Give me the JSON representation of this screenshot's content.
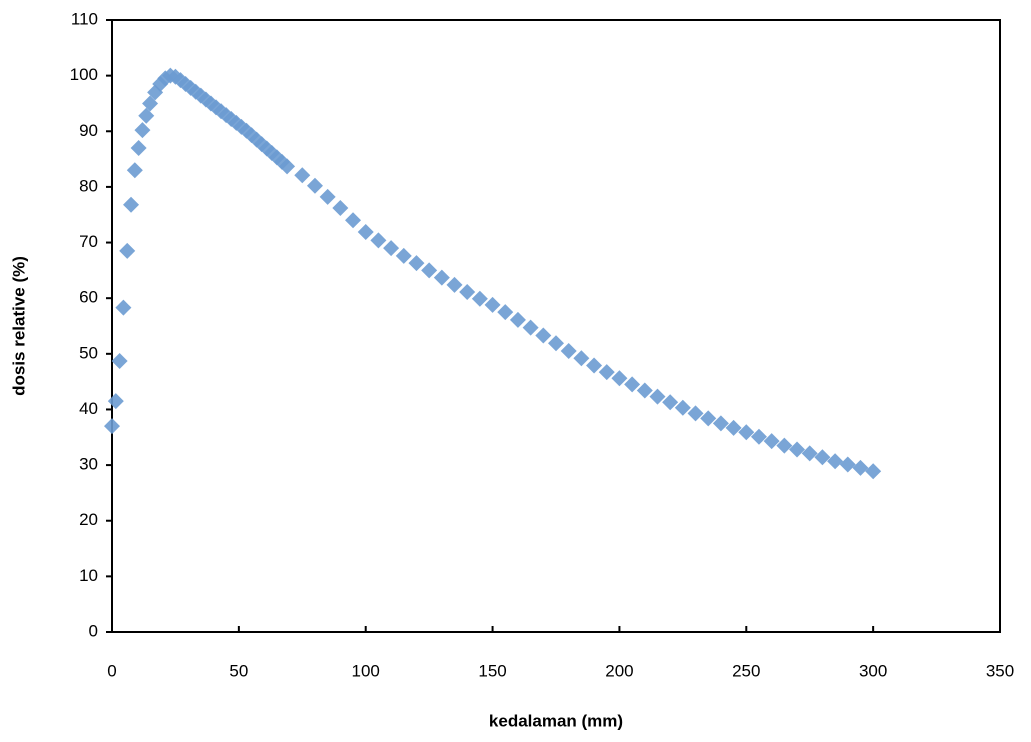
{
  "chart_data": {
    "type": "scatter",
    "x_label": "kedalaman (mm)",
    "y_label": "dosis relative (%)",
    "xlim": [
      0,
      350
    ],
    "xticks": [
      0,
      50,
      100,
      150,
      200,
      250,
      300,
      350
    ],
    "ylim": [
      0,
      110
    ],
    "yticks": [
      0,
      10,
      20,
      30,
      40,
      50,
      60,
      70,
      80,
      90,
      100,
      110
    ],
    "grid": false,
    "series": [
      {
        "color": "#6b9bd2",
        "x": [
          0,
          1.5,
          3,
          4.5,
          6,
          7.5,
          9,
          10.5,
          12,
          13.5,
          15,
          17,
          19,
          21,
          23,
          25,
          27,
          29,
          31,
          33,
          35,
          37,
          39,
          41,
          43,
          45,
          47,
          49,
          51,
          53,
          55,
          57,
          59,
          61,
          63,
          65,
          67,
          69,
          75,
          80,
          85,
          90,
          95,
          100,
          105,
          110,
          115,
          120,
          125,
          130,
          135,
          140,
          145,
          150,
          155,
          160,
          165,
          170,
          175,
          180,
          185,
          190,
          195,
          200,
          205,
          210,
          215,
          220,
          225,
          230,
          235,
          240,
          245,
          250,
          255,
          260,
          265,
          270,
          275,
          280,
          285,
          290,
          295,
          300
        ],
        "values": [
          37,
          41.5,
          48.7,
          58.3,
          68.5,
          76.8,
          83,
          87,
          90.2,
          92.8,
          95,
          97,
          98.5,
          99.5,
          100,
          99.8,
          99.2,
          98.5,
          97.8,
          97.1,
          96.4,
          95.7,
          95.0,
          94.3,
          93.6,
          92.9,
          92.2,
          91.5,
          90.8,
          90.1,
          89.3,
          88.5,
          87.7,
          86.9,
          86.1,
          85.3,
          84.5,
          83.7,
          82.1,
          80.2,
          78.2,
          76.2,
          74.0,
          71.9,
          70.4,
          69.0,
          67.6,
          66.3,
          65.0,
          63.7,
          62.4,
          61.1,
          59.9,
          58.8,
          57.5,
          56.1,
          54.7,
          53.3,
          51.9,
          50.5,
          49.2,
          47.9,
          46.7,
          45.6,
          44.5,
          43.4,
          42.3,
          41.3,
          40.3,
          39.3,
          38.4,
          37.5,
          36.7,
          35.9,
          35.1,
          34.3,
          33.5,
          32.8,
          32.1,
          31.4,
          30.7,
          30.1,
          29.5,
          28.9
        ]
      }
    ]
  }
}
